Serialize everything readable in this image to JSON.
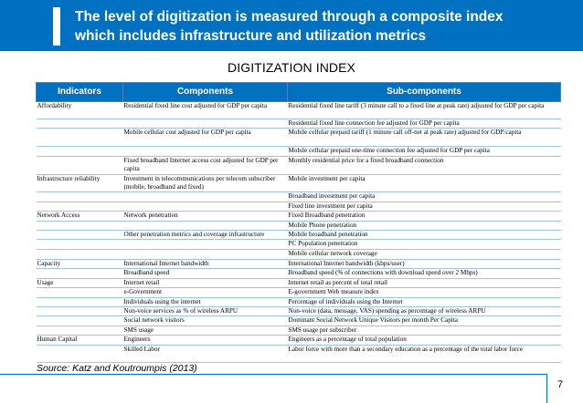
{
  "slide": {
    "title_line1": "The level of digitization is measured through a composite index",
    "title_line2": "which includes infrastructure and utilization metrics",
    "index_heading": "DIGITIZATION INDEX",
    "source": "Source: Katz and Koutroumpis (2013)",
    "page_number": "7"
  },
  "table": {
    "headers": [
      "Indicators",
      "Components",
      "Sub-components"
    ],
    "rows": [
      {
        "indicator": "Affordability",
        "component": "Residential fixed line cost adjusted for GDP per capita",
        "sub": "Residential fixed line tariff (3 minute call to a fixed line at peak rate) adjusted for GDP per capita"
      },
      {
        "indicator": "",
        "component": "",
        "sub": "Residential fixed line connection fee adjusted for GDP per capita"
      },
      {
        "indicator": "",
        "component": "Mobile cellular cost adjusted for GDP per capita",
        "sub": "Mobile cellular prepaid tariff (1 minute call off-net at peak rate) adjusted for GDP/capita"
      },
      {
        "indicator": "",
        "component": "",
        "sub": "Mobile cellular prepaid one-time connection fee adjusted for GDP per capita"
      },
      {
        "indicator": "",
        "component": "Fixed broadband Internet access cost adjusted for GDP per capita",
        "sub": "Monthly residential price for a fixed broadband connection"
      },
      {
        "indicator": "Infrastructure reliability",
        "component": "Investment in telecommunications per telecom subscriber (mobile, broadband and fixed)",
        "sub": "Mobile investment per capita"
      },
      {
        "indicator": "",
        "component": "",
        "sub": "Broadband investment per capita"
      },
      {
        "indicator": "",
        "component": "",
        "sub": "Fixed line investment per capita"
      },
      {
        "indicator": "Network Access",
        "component": "Network penetration",
        "sub": "Fixed Broadband penetration"
      },
      {
        "indicator": "",
        "component": "",
        "sub": "Mobile Phone penetration"
      },
      {
        "indicator": "",
        "component": "Other penetration metrics and coverage infrastructure",
        "sub": "Mobile broadband penetration"
      },
      {
        "indicator": "",
        "component": "",
        "sub": "PC Population penetration"
      },
      {
        "indicator": "",
        "component": "",
        "sub": "Mobile cellular network coverage"
      },
      {
        "indicator": "Capacity",
        "component": "International Internet bandwidth",
        "sub": "International Internet bandwidth (kbps/user)"
      },
      {
        "indicator": "",
        "component": "Broadband speed",
        "sub": "Broadband speed (% of connections with download speed over 2 Mbps)"
      },
      {
        "indicator": "Usage",
        "component": "Internet retail",
        "sub": "Internet retail as percent of total retail"
      },
      {
        "indicator": "",
        "component": "e-Government",
        "sub": "E-government Web measure index"
      },
      {
        "indicator": "",
        "component": "Individuals using the internet",
        "sub": "Percentage of individuals using the Internet"
      },
      {
        "indicator": "",
        "component": "Non-voice services as % of wireless ARPU",
        "sub": "Non-voice (data, message, VAS) spending as percentage of wireless ARPU"
      },
      {
        "indicator": "",
        "component": "Social network visitors",
        "sub": "Dominant Social Network Unique Visitors per month Per Capita"
      },
      {
        "indicator": "",
        "component": "SMS usage",
        "sub": "SMS usage per subscriber"
      },
      {
        "indicator": "Human Capital",
        "component": "Engineers",
        "sub": "Engineers as a percentage of total population"
      },
      {
        "indicator": "",
        "component": "Skilled Labor",
        "sub": "Labor force with more than a secondary education as a percentage of the total labor force"
      }
    ]
  }
}
